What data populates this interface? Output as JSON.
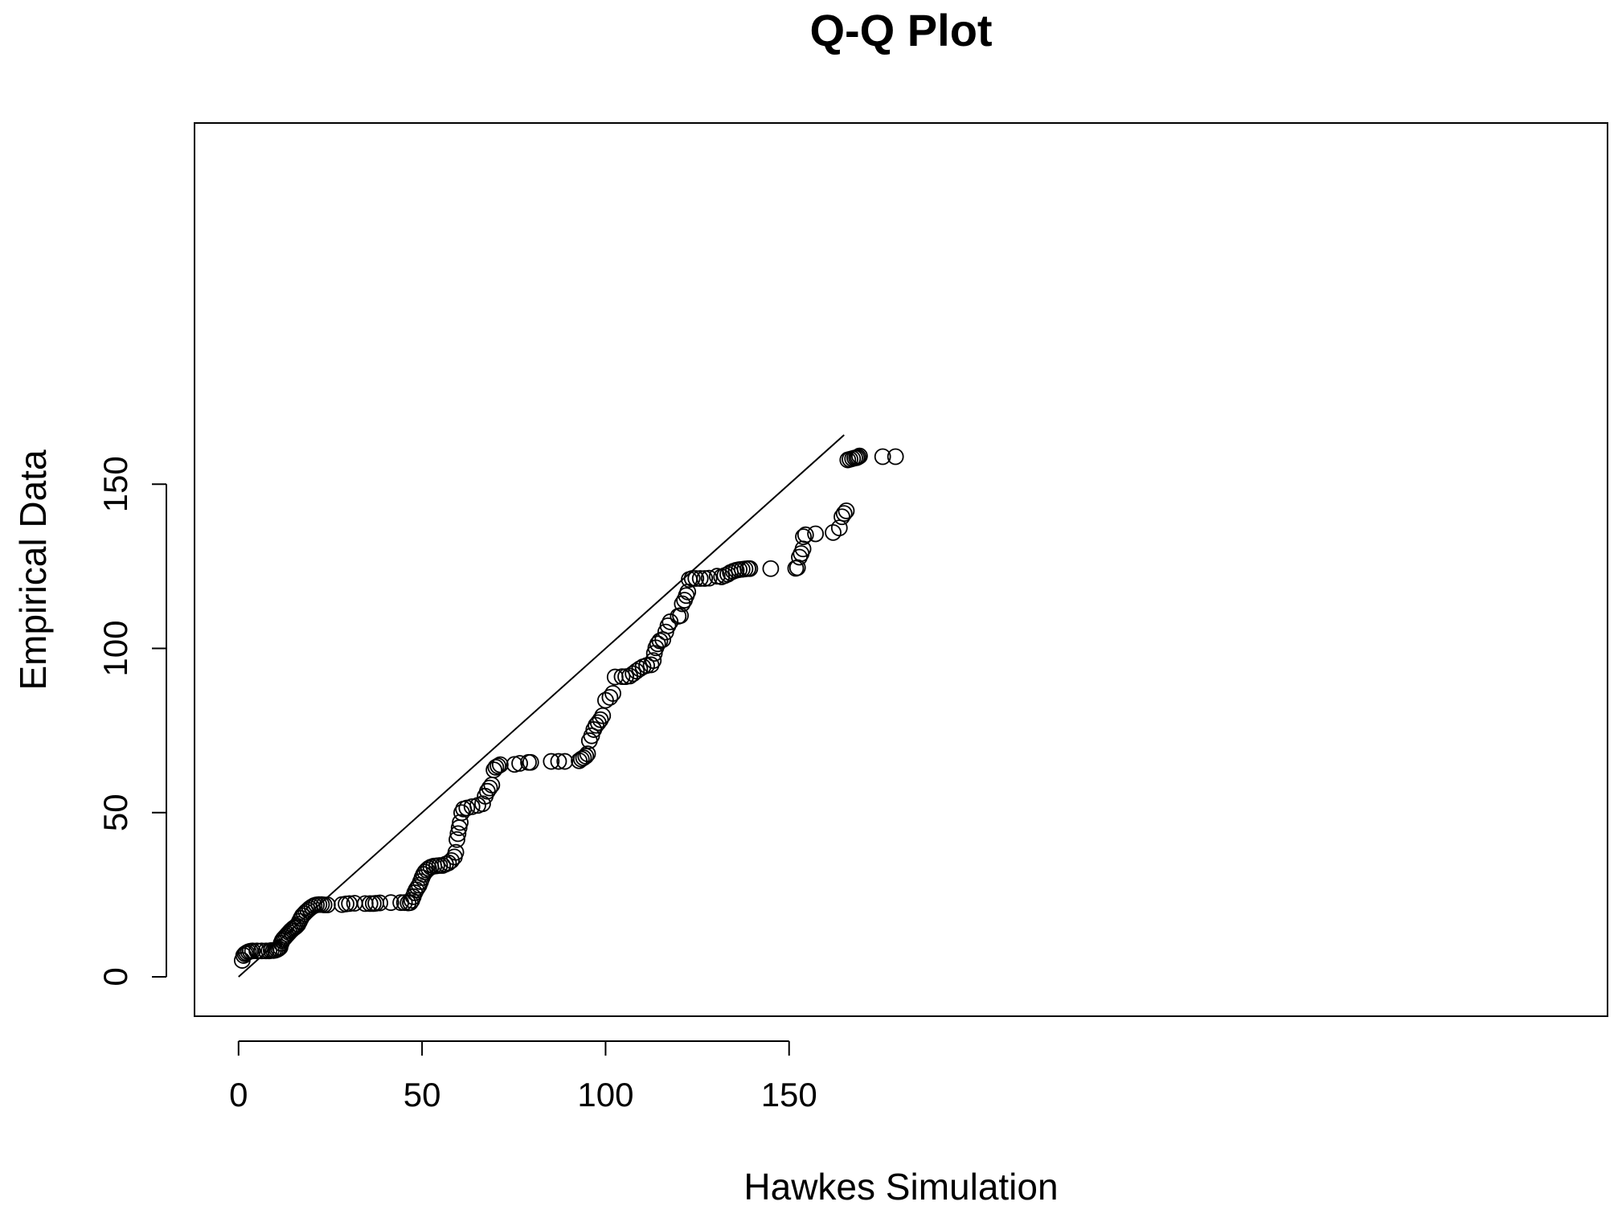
{
  "chart_data": {
    "type": "scatter",
    "title": "Q-Q Plot",
    "xlabel": "Hawkes Simulation",
    "ylabel": "Empirical Data",
    "xlim": [
      -12,
      373
    ],
    "ylim": [
      -12,
      260
    ],
    "xticks": [
      0,
      50,
      100,
      150
    ],
    "yticks": [
      0,
      50,
      100,
      150
    ],
    "reference_line": {
      "type": "identity",
      "from": [
        0,
        0
      ],
      "to": [
        165,
        165
      ]
    },
    "grid": false,
    "colors": {
      "points": "#000000",
      "line": "#000000",
      "background": "#ffffff"
    },
    "points": [
      [
        1,
        5
      ],
      [
        1.4,
        6.5
      ],
      [
        1.8,
        7
      ],
      [
        2.2,
        7.3
      ],
      [
        2.7,
        7.6
      ],
      [
        3.2,
        7.8
      ],
      [
        3.8,
        7.9
      ],
      [
        5,
        7.9
      ],
      [
        6.3,
        7.9
      ],
      [
        7.5,
        7.9
      ],
      [
        8.3,
        7.9
      ],
      [
        8.9,
        8
      ],
      [
        9.5,
        8
      ],
      [
        10,
        8.1
      ],
      [
        10.5,
        8.3
      ],
      [
        10.9,
        8.6
      ],
      [
        11.3,
        9
      ],
      [
        11.6,
        10.2
      ],
      [
        11.9,
        11
      ],
      [
        12.2,
        11.5
      ],
      [
        12.6,
        12
      ],
      [
        13,
        12.5
      ],
      [
        13.4,
        13
      ],
      [
        13.8,
        13.5
      ],
      [
        14.2,
        14
      ],
      [
        14.6,
        14.4
      ],
      [
        15,
        14.8
      ],
      [
        15.4,
        15.1
      ],
      [
        15.8,
        15.5
      ],
      [
        16.2,
        16
      ],
      [
        16.6,
        16.9
      ],
      [
        17,
        17.8
      ],
      [
        17.4,
        18.6
      ],
      [
        17.9,
        19.2
      ],
      [
        18.4,
        19.8
      ],
      [
        18.9,
        20.3
      ],
      [
        19.4,
        20.8
      ],
      [
        20,
        21.3
      ],
      [
        20.6,
        21.7
      ],
      [
        21.2,
        21.9
      ],
      [
        21.9,
        22
      ],
      [
        22.6,
        22
      ],
      [
        23.3,
        21.9
      ],
      [
        24.2,
        21.9
      ],
      [
        28.2,
        22
      ],
      [
        29.3,
        22.2
      ],
      [
        30.2,
        22.3
      ],
      [
        31.6,
        22.4
      ],
      [
        34.5,
        22.3
      ],
      [
        35.8,
        22.3
      ],
      [
        36.7,
        22.3
      ],
      [
        37.4,
        22.4
      ],
      [
        38.5,
        22.5
      ],
      [
        41.5,
        22.6
      ],
      [
        44.2,
        22.6
      ],
      [
        45.2,
        22.6
      ],
      [
        46.2,
        22.5
      ],
      [
        46.8,
        22.6
      ],
      [
        47.2,
        23.3
      ],
      [
        47.6,
        24.4
      ],
      [
        48,
        25.6
      ],
      [
        48.4,
        26.5
      ],
      [
        48.8,
        27.2
      ],
      [
        49.2,
        27.9
      ],
      [
        49.6,
        29
      ],
      [
        50,
        30.2
      ],
      [
        50.4,
        31.2
      ],
      [
        50.8,
        31.9
      ],
      [
        51.3,
        32.5
      ],
      [
        51.8,
        33
      ],
      [
        52.4,
        33.4
      ],
      [
        53.2,
        33.7
      ],
      [
        54,
        33.8
      ],
      [
        54.8,
        33.9
      ],
      [
        55.6,
        33.9
      ],
      [
        56.4,
        34.3
      ],
      [
        57.2,
        34.7
      ],
      [
        58,
        35.4
      ],
      [
        58.8,
        36.5
      ],
      [
        59.2,
        37.9
      ],
      [
        59.5,
        41.8
      ],
      [
        59.8,
        43.6
      ],
      [
        60.1,
        45.4
      ],
      [
        60.4,
        47
      ],
      [
        60.8,
        50
      ],
      [
        61.3,
        51.1
      ],
      [
        62.2,
        51.4
      ],
      [
        63.6,
        51.8
      ],
      [
        65.2,
        52.2
      ],
      [
        66.5,
        52.7
      ],
      [
        67.2,
        55
      ],
      [
        67.8,
        56.5
      ],
      [
        68.4,
        57.5
      ],
      [
        69,
        58.4
      ],
      [
        69.6,
        63
      ],
      [
        70.1,
        63.8
      ],
      [
        70.7,
        64.2
      ],
      [
        71.3,
        64.6
      ],
      [
        75.2,
        64.7
      ],
      [
        76.6,
        65
      ],
      [
        79,
        65.3
      ],
      [
        79.6,
        65.3
      ],
      [
        85.2,
        65.6
      ],
      [
        87.2,
        65.6
      ],
      [
        88.9,
        65.6
      ],
      [
        92.8,
        65.8
      ],
      [
        93.4,
        66.3
      ],
      [
        94,
        66.7
      ],
      [
        94.6,
        67.2
      ],
      [
        95.1,
        67.9
      ],
      [
        95.6,
        71.9
      ],
      [
        96.2,
        73.4
      ],
      [
        96.8,
        75.3
      ],
      [
        97.4,
        76.6
      ],
      [
        98,
        77.4
      ],
      [
        98.6,
        78.3
      ],
      [
        99.2,
        79.5
      ],
      [
        100,
        84.2
      ],
      [
        101.2,
        85.1
      ],
      [
        102,
        86.3
      ],
      [
        102.6,
        91.3
      ],
      [
        104.5,
        91.4
      ],
      [
        105.5,
        91.4
      ],
      [
        106.6,
        91.6
      ],
      [
        107.5,
        92.3
      ],
      [
        108.4,
        93.1
      ],
      [
        109.3,
        93.8
      ],
      [
        110.2,
        94.4
      ],
      [
        111.2,
        94.8
      ],
      [
        112.4,
        95
      ],
      [
        113,
        96.3
      ],
      [
        113.3,
        98.5
      ],
      [
        113.7,
        100.2
      ],
      [
        114.2,
        101.4
      ],
      [
        114.8,
        102.3
      ],
      [
        115.6,
        102.7
      ],
      [
        116.4,
        105
      ],
      [
        117,
        106.9
      ],
      [
        117.6,
        108.1
      ],
      [
        119.8,
        109.8
      ],
      [
        120.4,
        110
      ],
      [
        120.9,
        113.6
      ],
      [
        121.5,
        114.7
      ],
      [
        122,
        116.1
      ],
      [
        122.4,
        117.2
      ],
      [
        122.8,
        121
      ],
      [
        123.6,
        121.3
      ],
      [
        124.6,
        121.3
      ],
      [
        125.8,
        121.3
      ],
      [
        127,
        121.3
      ],
      [
        128.2,
        121.4
      ],
      [
        130.4,
        122
      ],
      [
        131.6,
        121.8
      ],
      [
        132.5,
        122.2
      ],
      [
        133.3,
        122.6
      ],
      [
        134,
        123.1
      ],
      [
        134.8,
        123.5
      ],
      [
        135.6,
        123.8
      ],
      [
        136.4,
        124
      ],
      [
        137.2,
        124.1
      ],
      [
        138,
        124.2
      ],
      [
        138.8,
        124.3
      ],
      [
        139.3,
        124.3
      ],
      [
        145,
        124.3
      ],
      [
        151.8,
        124.4
      ],
      [
        152.3,
        124.6
      ],
      [
        152.8,
        127.8
      ],
      [
        153.3,
        128.9
      ],
      [
        153.8,
        130.3
      ],
      [
        153.9,
        134
      ],
      [
        154.5,
        134.6
      ],
      [
        157.2,
        134.9
      ],
      [
        162,
        135.3
      ],
      [
        163.7,
        136.7
      ],
      [
        164.4,
        140.1
      ],
      [
        165,
        141.1
      ],
      [
        165.6,
        141.9
      ],
      [
        166,
        157.4
      ],
      [
        166.6,
        157.6
      ],
      [
        167.3,
        157.8
      ],
      [
        167.9,
        158
      ],
      [
        168.4,
        158.1
      ],
      [
        168.8,
        158.3
      ],
      [
        169.2,
        158.6
      ],
      [
        175.5,
        158.4
      ],
      [
        179,
        158.4
      ]
    ]
  }
}
